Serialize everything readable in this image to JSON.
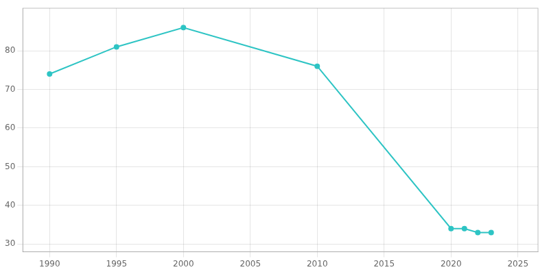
{
  "chart_data": {
    "type": "line",
    "x": [
      1990,
      1995,
      2000,
      2010,
      2020,
      2021,
      2022,
      2023
    ],
    "values": [
      74,
      81,
      86,
      76,
      34,
      34,
      33,
      33
    ],
    "color": "#2ec4c4",
    "marker": "circle",
    "xlim": [
      1988,
      2026.5
    ],
    "ylim": [
      28,
      91
    ],
    "xticks": [
      1990,
      1995,
      2000,
      2005,
      2010,
      2015,
      2020,
      2025
    ],
    "yticks": [
      30,
      40,
      50,
      60,
      70,
      80
    ],
    "grid": true
  }
}
